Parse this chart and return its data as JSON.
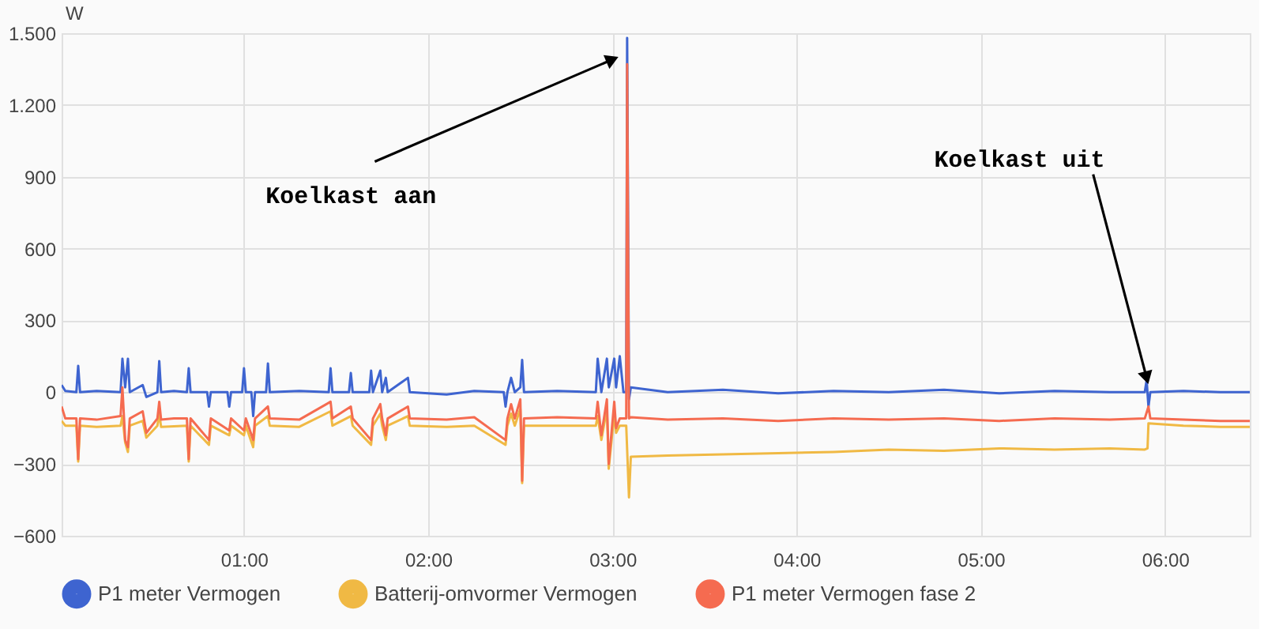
{
  "chart_data": {
    "type": "line",
    "ylabel": "W",
    "xlim": [
      0.01,
      6.46
    ],
    "ylim": [
      -600,
      1500
    ],
    "xticks": [
      {
        "value": 1,
        "label": "01:00"
      },
      {
        "value": 2,
        "label": "02:00"
      },
      {
        "value": 3,
        "label": "03:00"
      },
      {
        "value": 4,
        "label": "04:00"
      },
      {
        "value": 5,
        "label": "05:00"
      },
      {
        "value": 6,
        "label": "06:00"
      }
    ],
    "yticks": [
      -600,
      -300,
      0,
      300,
      600,
      900,
      {
        "value": 1200,
        "label": "1.200"
      },
      {
        "value": 1500,
        "label": "1.500"
      }
    ],
    "grid": true,
    "legend": "bottom",
    "marker": "none",
    "line_style": "solid",
    "series": [
      {
        "name": "P1 meter Vermogen",
        "color": "#3e64d0",
        "x": [
          0.01,
          0.03,
          0.09,
          0.1,
          0.11,
          0.2,
          0.33,
          0.34,
          0.355,
          0.37,
          0.38,
          0.45,
          0.47,
          0.53,
          0.54,
          0.55,
          0.62,
          0.69,
          0.7,
          0.71,
          0.8,
          0.81,
          0.82,
          0.91,
          0.92,
          0.93,
          0.99,
          1.0,
          1.01,
          1.04,
          1.05,
          1.06,
          1.12,
          1.13,
          1.14,
          1.3,
          1.46,
          1.47,
          1.48,
          1.57,
          1.58,
          1.59,
          1.68,
          1.69,
          1.7,
          1.74,
          1.75,
          1.77,
          1.78,
          1.89,
          1.9,
          2.1,
          2.25,
          2.41,
          2.42,
          2.43,
          2.45,
          2.47,
          2.5,
          2.51,
          2.52,
          2.7,
          2.91,
          2.92,
          2.94,
          2.97,
          2.98,
          3.01,
          3.02,
          3.04,
          3.06,
          3.075,
          3.08,
          3.09,
          3.1,
          3.3,
          3.6,
          3.9,
          4.2,
          4.5,
          4.8,
          5.1,
          5.4,
          5.7,
          5.89,
          5.9,
          5.91,
          5.92,
          6.1,
          6.3,
          6.46
        ],
        "values": [
          30,
          5,
          0,
          110,
          0,
          5,
          0,
          140,
          20,
          140,
          0,
          30,
          -20,
          0,
          130,
          0,
          5,
          0,
          100,
          0,
          0,
          -60,
          0,
          0,
          -60,
          0,
          0,
          100,
          0,
          0,
          -100,
          0,
          0,
          120,
          0,
          5,
          0,
          100,
          0,
          0,
          80,
          0,
          0,
          90,
          0,
          90,
          0,
          60,
          0,
          60,
          0,
          -10,
          5,
          0,
          -60,
          0,
          60,
          0,
          20,
          135,
          0,
          5,
          0,
          140,
          0,
          140,
          20,
          140,
          20,
          150,
          0,
          0,
          1480,
          -30,
          20,
          0,
          10,
          -5,
          5,
          0,
          10,
          -5,
          5,
          0,
          0,
          50,
          -60,
          0,
          5,
          0,
          0
        ]
      },
      {
        "name": "Batterij-omvormer Vermogen",
        "color": "#f0b944",
        "x": [
          0.01,
          0.03,
          0.09,
          0.1,
          0.11,
          0.2,
          0.33,
          0.34,
          0.355,
          0.37,
          0.38,
          0.45,
          0.47,
          0.53,
          0.54,
          0.55,
          0.69,
          0.7,
          0.71,
          0.81,
          0.82,
          0.92,
          0.93,
          1.0,
          1.01,
          1.05,
          1.06,
          1.13,
          1.14,
          1.3,
          1.47,
          1.48,
          1.58,
          1.59,
          1.69,
          1.7,
          1.74,
          1.75,
          1.77,
          1.78,
          1.89,
          1.9,
          2.1,
          2.25,
          2.42,
          2.43,
          2.45,
          2.47,
          2.5,
          2.51,
          2.52,
          2.7,
          2.91,
          2.92,
          2.94,
          2.97,
          2.98,
          3.01,
          3.02,
          3.04,
          3.075,
          3.09,
          3.1,
          3.3,
          3.6,
          3.9,
          4.2,
          4.5,
          4.8,
          5.1,
          5.4,
          5.7,
          5.89,
          5.905,
          5.91,
          6.1,
          6.3,
          6.46
        ],
        "values": [
          -120,
          -140,
          -140,
          -290,
          -140,
          -145,
          -140,
          -100,
          -210,
          -250,
          -140,
          -120,
          -190,
          -140,
          -90,
          -145,
          -140,
          -290,
          -140,
          -220,
          -140,
          -180,
          -140,
          -180,
          -140,
          -230,
          -140,
          -100,
          -140,
          -145,
          -80,
          -140,
          -100,
          -140,
          -220,
          -140,
          -90,
          -140,
          -200,
          -140,
          -100,
          -140,
          -145,
          -140,
          -220,
          -140,
          -90,
          -140,
          -70,
          -380,
          -140,
          -140,
          -140,
          -100,
          -200,
          -70,
          -320,
          -90,
          -170,
          -140,
          -140,
          -440,
          -270,
          -265,
          -260,
          -255,
          -250,
          -240,
          -245,
          -235,
          -240,
          -235,
          -240,
          -235,
          -130,
          -140,
          -145,
          -145
        ]
      },
      {
        "name": "P1 meter Vermogen fase 2",
        "color": "#f56b50",
        "x": [
          0.01,
          0.03,
          0.09,
          0.1,
          0.11,
          0.2,
          0.33,
          0.34,
          0.355,
          0.37,
          0.38,
          0.45,
          0.47,
          0.53,
          0.54,
          0.55,
          0.62,
          0.69,
          0.7,
          0.71,
          0.81,
          0.82,
          0.92,
          0.93,
          1.0,
          1.01,
          1.05,
          1.06,
          1.13,
          1.14,
          1.3,
          1.47,
          1.48,
          1.58,
          1.59,
          1.69,
          1.7,
          1.74,
          1.75,
          1.77,
          1.78,
          1.89,
          1.9,
          2.1,
          2.25,
          2.42,
          2.43,
          2.45,
          2.47,
          2.5,
          2.51,
          2.52,
          2.7,
          2.91,
          2.92,
          2.94,
          2.97,
          2.98,
          3.01,
          3.02,
          3.04,
          3.075,
          3.08,
          3.09,
          3.1,
          3.3,
          3.6,
          3.9,
          4.2,
          4.5,
          4.8,
          5.1,
          5.4,
          5.7,
          5.89,
          5.91,
          5.92,
          6.1,
          6.3,
          6.46
        ],
        "values": [
          -60,
          -110,
          -110,
          -280,
          -110,
          -115,
          -100,
          20,
          -200,
          -230,
          -110,
          -80,
          -170,
          -110,
          -40,
          -115,
          -110,
          -110,
          -280,
          -110,
          -200,
          -110,
          -160,
          -110,
          -160,
          -110,
          -200,
          -110,
          -60,
          -110,
          -115,
          -40,
          -110,
          -60,
          -110,
          -200,
          -110,
          -50,
          -110,
          -180,
          -110,
          -60,
          -110,
          -115,
          -105,
          -200,
          -110,
          -50,
          -110,
          -30,
          -370,
          -110,
          -105,
          -110,
          -40,
          -180,
          -30,
          -300,
          -40,
          -150,
          -110,
          -110,
          1370,
          -110,
          -105,
          -115,
          -110,
          -120,
          -110,
          -115,
          -110,
          -120,
          -110,
          -115,
          -110,
          -60,
          -110,
          -115,
          -120,
          -120
        ]
      }
    ],
    "annotations": [
      {
        "text": "Koelkast aan",
        "x": 3.0,
        "y": 1390
      },
      {
        "text": "Koelkast uit",
        "x": 5.9,
        "y": 60
      }
    ]
  }
}
